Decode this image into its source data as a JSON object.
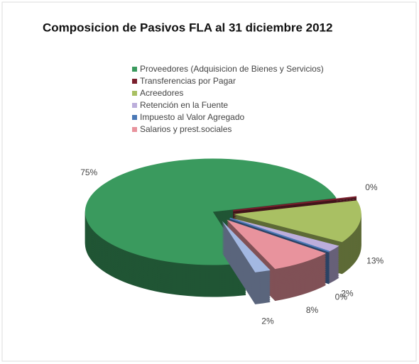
{
  "chart_data": {
    "type": "pie3d",
    "title": "Composicion de Pasivos FLA al 31 diciembre  2012",
    "categories": [
      "Proveedores (Adquisicion de Bienes y Servicios)",
      "Transferencias por Pagar",
      "Acreedores",
      "Retención en la Fuente",
      "Impuesto al Valor Agregado",
      "Salarios y prest.sociales",
      null
    ],
    "values": [
      75,
      0,
      13,
      2,
      0,
      8,
      2
    ],
    "value_labels": [
      "75%",
      "0%",
      "13%",
      "2%",
      "0%",
      "8%",
      "2%"
    ],
    "colors": [
      "#3a9a5e",
      "#7a1f2d",
      "#a9c063",
      "#bcaedb",
      "#4a78b6",
      "#e8939d",
      "#a3b8e2"
    ],
    "legend": "top"
  }
}
